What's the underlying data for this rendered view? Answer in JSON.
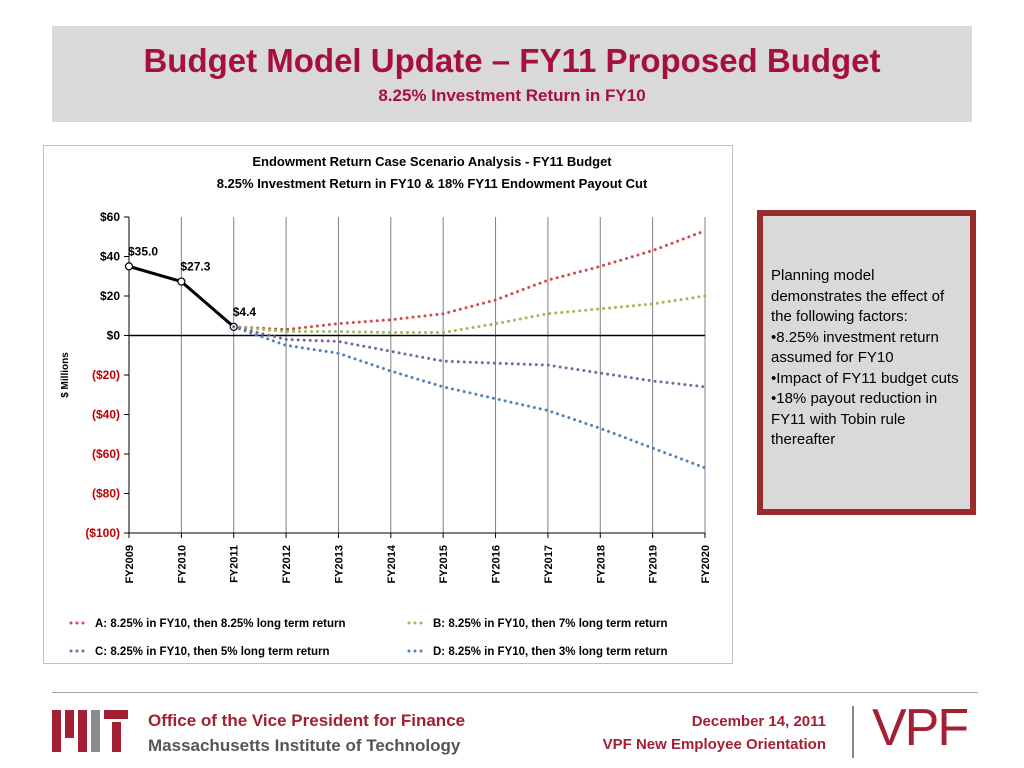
{
  "header": {
    "title": "Budget Model Update – FY11 Proposed Budget",
    "subtitle": "8.25% Investment Return in FY10"
  },
  "chart_data": {
    "type": "line",
    "title": "Endowment Return Case Scenario Analysis - FY11 Budget",
    "subtitle": "8.25% Investment Return in FY10 & 18% FY11 Endowment Payout Cut",
    "y_label": "$ Millions",
    "categories": [
      "FY2009",
      "FY2010",
      "FY2011",
      "FY2012",
      "FY2013",
      "FY2014",
      "FY2015",
      "FY2016",
      "FY2017",
      "FY2018",
      "FY2019",
      "FY2020"
    ],
    "ylim": [
      -100,
      60
    ],
    "yticks": [
      {
        "value": 60,
        "label": "$60"
      },
      {
        "value": 40,
        "label": "$40"
      },
      {
        "value": 20,
        "label": "$20"
      },
      {
        "value": 0,
        "label": "$0"
      },
      {
        "value": -20,
        "label": "($20)"
      },
      {
        "value": -40,
        "label": "($40)"
      },
      {
        "value": -60,
        "label": "($60)"
      },
      {
        "value": -80,
        "label": "($80)"
      },
      {
        "value": -100,
        "label": "($100)"
      }
    ],
    "negative_tick_color": "#c00000",
    "grid": true,
    "series": [
      {
        "color": "#000000",
        "style": "solid",
        "markers": true,
        "values": [
          35.0,
          27.3,
          4.4,
          null,
          null,
          null,
          null,
          null,
          null,
          null,
          null,
          null
        ],
        "value_labels": [
          "$35.0",
          "$27.3",
          "$4.4",
          null,
          null,
          null,
          null,
          null,
          null,
          null,
          null,
          null
        ]
      },
      {
        "name": "A: 8.25% in FY10, then 8.25% long term return",
        "color": "#d0494c",
        "style": "dotted",
        "values": [
          null,
          null,
          4.4,
          3,
          6,
          8,
          11,
          18,
          28,
          35,
          43,
          53
        ]
      },
      {
        "name": "B: 8.25% in FY10, then 7% long term return",
        "color": "#9bbb59",
        "style": "dotted",
        "values": [
          null,
          null,
          4.4,
          2,
          2,
          1.5,
          1.5,
          6,
          11,
          13.5,
          16,
          20
        ]
      },
      {
        "name": "C: 8.25% in FY10, then 5% long term return",
        "color": "#8064a2",
        "style": "dotted",
        "values": [
          null,
          null,
          4.4,
          -2,
          -3,
          -8,
          -13,
          -14,
          -15,
          -19,
          -23,
          -26
        ]
      },
      {
        "name": "D: 8.25% in FY10, then 3% long term return",
        "color": "#4f81bd",
        "style": "dotted",
        "values": [
          null,
          null,
          4.4,
          -5,
          -9,
          -18,
          -26,
          -32,
          -38,
          -47,
          -57,
          -67
        ]
      }
    ]
  },
  "side_box": {
    "lines": [
      "Planning model demonstrates the effect of the following factors:",
      "•8.25% investment return assumed for FY10",
      "•Impact of FY11 budget cuts",
      "•18% payout reduction in FY11 with Tobin rule thereafter"
    ]
  },
  "footer": {
    "office": "Office of the Vice President for Finance",
    "institute": "Massachusetts Institute of Technology",
    "date": "December 14, 2011",
    "event": "VPF New Employee Orientation",
    "logo": "VPF"
  }
}
